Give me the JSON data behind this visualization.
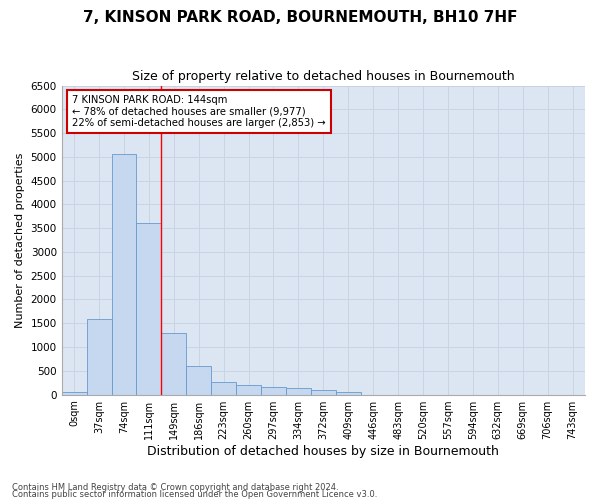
{
  "title": "7, KINSON PARK ROAD, BOURNEMOUTH, BH10 7HF",
  "subtitle": "Size of property relative to detached houses in Bournemouth",
  "xlabel": "Distribution of detached houses by size in Bournemouth",
  "ylabel": "Number of detached properties",
  "footer_line1": "Contains HM Land Registry data © Crown copyright and database right 2024.",
  "footer_line2": "Contains public sector information licensed under the Open Government Licence v3.0.",
  "bar_labels": [
    "0sqm",
    "37sqm",
    "74sqm",
    "111sqm",
    "149sqm",
    "186sqm",
    "223sqm",
    "260sqm",
    "297sqm",
    "334sqm",
    "372sqm",
    "409sqm",
    "446sqm",
    "483sqm",
    "520sqm",
    "557sqm",
    "594sqm",
    "632sqm",
    "669sqm",
    "706sqm",
    "743sqm"
  ],
  "bar_values": [
    50,
    1600,
    5050,
    3600,
    1300,
    600,
    270,
    200,
    160,
    130,
    100,
    50,
    0,
    0,
    0,
    0,
    0,
    0,
    0,
    0,
    0
  ],
  "bar_color": "#c5d8f0",
  "bar_edge_color": "#6699cc",
  "ylim": [
    0,
    6500
  ],
  "yticks": [
    0,
    500,
    1000,
    1500,
    2000,
    2500,
    3000,
    3500,
    4000,
    4500,
    5000,
    5500,
    6000,
    6500
  ],
  "grid_color": "#c8d4e4",
  "bg_color": "#dce6f3",
  "property_line_x": 3.5,
  "annotation_line1": "7 KINSON PARK ROAD: 144sqm",
  "annotation_line2": "← 78% of detached houses are smaller (9,977)",
  "annotation_line3": "22% of semi-detached houses are larger (2,853) →",
  "annotation_box_color": "#cc0000",
  "title_fontsize": 11,
  "subtitle_fontsize": 9,
  "xlabel_fontsize": 9,
  "ylabel_fontsize": 8,
  "tick_fontsize": 7.5
}
